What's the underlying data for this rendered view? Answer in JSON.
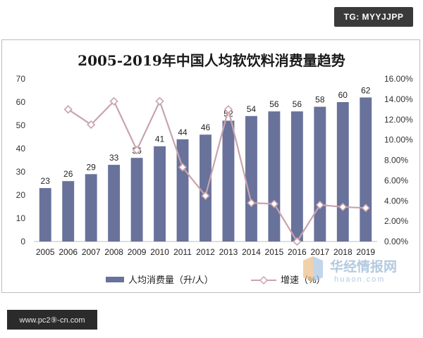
{
  "tag": "TG: MYYJJPP",
  "url_badge": "www.pc2⑨-cn.com",
  "watermark": {
    "cn": "华经情报网",
    "en": "huaon.com"
  },
  "chart_data": {
    "type": "bar",
    "title": "2005-2019年中国人均软饮料消费量趋势",
    "categories": [
      "2005",
      "2006",
      "2007",
      "2008",
      "2009",
      "2010",
      "2011",
      "2012",
      "2013",
      "2014",
      "2015",
      "2016",
      "2017",
      "2018",
      "2019"
    ],
    "series": [
      {
        "name": "人均消费量（升/人）",
        "type": "bar",
        "axis": "left",
        "color": "#68729a",
        "values": [
          23,
          26,
          29,
          33,
          36,
          41,
          44,
          46,
          52,
          54,
          56,
          56,
          58,
          60,
          62
        ]
      },
      {
        "name": "增速（%）",
        "type": "line",
        "axis": "right",
        "color": "#c9a3ad",
        "values": [
          null,
          13.0,
          11.5,
          13.8,
          9.0,
          13.8,
          7.3,
          4.5,
          13.0,
          3.8,
          3.7,
          0.0,
          3.6,
          3.4,
          3.3
        ]
      }
    ],
    "y_left": {
      "ylim": [
        0,
        70
      ],
      "ticks": [
        "0",
        "10",
        "20",
        "30",
        "40",
        "50",
        "60",
        "70"
      ]
    },
    "y_right": {
      "ylim": [
        0,
        16
      ],
      "ticks": [
        "0.00%",
        "2.00%",
        "4.00%",
        "6.00%",
        "8.00%",
        "10.00%",
        "12.00%",
        "14.00%",
        "16.00%"
      ]
    },
    "grid": false,
    "legend": "bottom"
  }
}
